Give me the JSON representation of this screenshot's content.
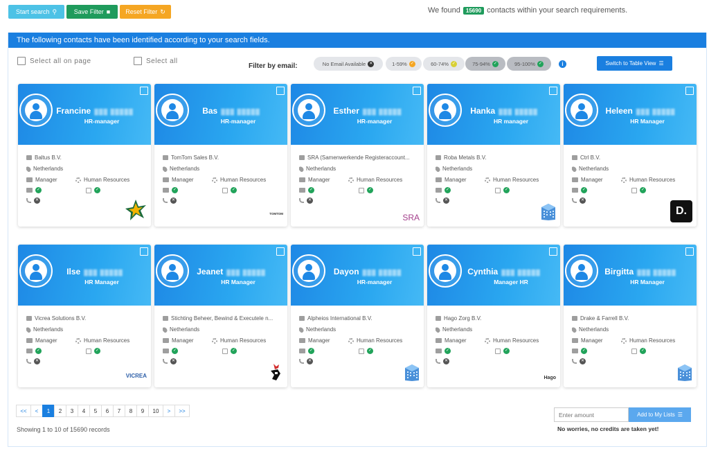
{
  "toolbar": {
    "start_label": "Start search",
    "save_label": "Save Filter",
    "reset_label": "Reset Filter",
    "found_prefix": "We found",
    "found_count": "15690",
    "found_suffix": "contacts within your search requirements."
  },
  "panel": {
    "header": "The following contacts have been identified according to your search fields.",
    "select_page": "Select all on page",
    "select_all": "Select all",
    "filter_label": "Filter by email:",
    "filters": [
      {
        "label": "No Email Available",
        "color": "#e4e6ea",
        "dot": "#333333"
      },
      {
        "label": "1-59%",
        "color": "#e4e6ea",
        "dot": "#f5a623"
      },
      {
        "label": "60-74%",
        "color": "#e4e6ea",
        "dot": "#d8d036"
      },
      {
        "label": "75-94%",
        "color": "#b9bcc2",
        "dot": "#21a35a"
      },
      {
        "label": "95-100%",
        "color": "#b9bcc2",
        "dot": "#21a35a"
      }
    ],
    "table_view": "Switch to Table View"
  },
  "cards": [
    {
      "first": "Francine",
      "role": "HR-manager",
      "company": "Baltus B.V.",
      "country": "Netherlands",
      "level": "Manager",
      "dept": "Human Resources",
      "email_ok": true,
      "phone_ok": false,
      "logo": "star"
    },
    {
      "first": "Bas",
      "role": "HR-manager",
      "company": "TomTom Sales B.V.",
      "country": "Netherlands",
      "level": "Manager",
      "dept": "Human Resources",
      "email_ok": true,
      "phone_ok": false,
      "logo": "tomtom"
    },
    {
      "first": "Esther",
      "role": "HR-manager",
      "company": "SRA (Samenwerkende Registeraccount...",
      "country": "Netherlands",
      "level": "Manager",
      "dept": "Human Resources",
      "email_ok": true,
      "phone_ok": false,
      "logo": "sra"
    },
    {
      "first": "Hanka",
      "role": "HR manager",
      "company": "Roba Metals B.V.",
      "country": "Netherlands",
      "level": "Manager",
      "dept": "Human Resources",
      "email_ok": true,
      "phone_ok": false,
      "logo": "building"
    },
    {
      "first": "Heleen",
      "role": "HR Manager",
      "company": "Ctrl B.V.",
      "country": "Netherlands",
      "level": "Manager",
      "dept": "Human Resources",
      "email_ok": true,
      "phone_ok": false,
      "logo": "d"
    },
    {
      "first": "Ilse",
      "role": "HR Manager",
      "company": "Vicrea Solutions B.V.",
      "country": "Netherlands",
      "level": "Manager",
      "dept": "Human Resources",
      "email_ok": true,
      "phone_ok": false,
      "logo": "vicrea"
    },
    {
      "first": "Jeanet",
      "role": "HR Manager",
      "company": "Stichting Beheer, Bewind & Executele n...",
      "country": "Netherlands",
      "level": "Manager",
      "dept": "Human Resources",
      "email_ok": true,
      "phone_ok": false,
      "logo": "rooster"
    },
    {
      "first": "Dayon",
      "role": "HR-manager",
      "company": "Alpheios International B.V.",
      "country": "Netherlands",
      "level": "Manager",
      "dept": "Human Resources",
      "email_ok": true,
      "phone_ok": false,
      "logo": "building"
    },
    {
      "first": "Cynthia",
      "role": "Manager HR",
      "company": "Hago Zorg B.V.",
      "country": "Netherlands",
      "level": "Manager",
      "dept": "Human Resources",
      "email_ok": true,
      "phone_ok": false,
      "logo": "hago"
    },
    {
      "first": "Birgitta",
      "role": "HR Manager",
      "company": "Drake & Farrell B.V.",
      "country": "Netherlands",
      "level": "Manager",
      "dept": "Human Resources",
      "email_ok": true,
      "phone_ok": false,
      "logo": "building"
    }
  ],
  "logos": {
    "tomtom": "TOMTOM",
    "sra": "SRA",
    "d": "D.",
    "vicrea": "VICREA",
    "hago": "Hago"
  },
  "pager": {
    "first": "<<",
    "prev": "<",
    "pages": [
      "1",
      "2",
      "3",
      "4",
      "5",
      "6",
      "7",
      "8",
      "9",
      "10"
    ],
    "next": ">",
    "last": ">>",
    "active": "1",
    "showing": "Showing 1 to 10 of 15690 records"
  },
  "lists": {
    "amount_placeholder": "Enter amount",
    "add_label": "Add to My Lists",
    "credits_note": "No worries, no credits are taken yet!"
  }
}
